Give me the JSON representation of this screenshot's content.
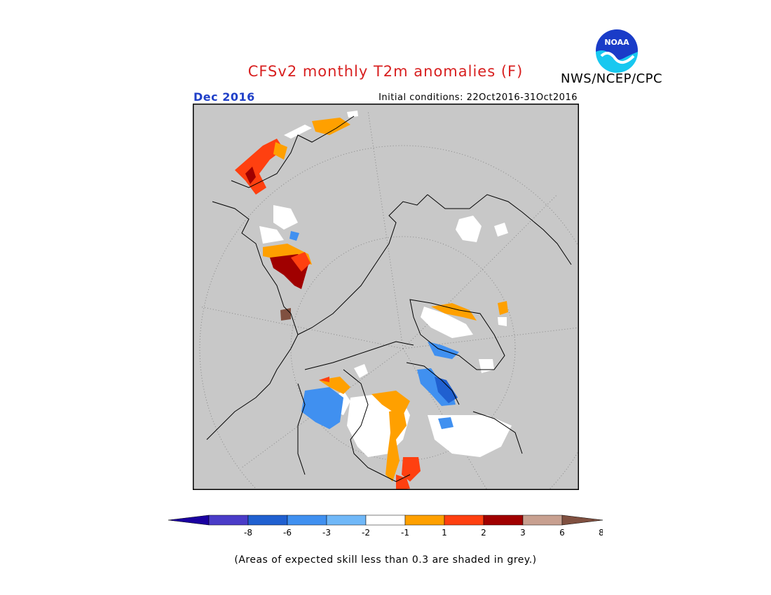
{
  "header": {
    "title": "CFSv2 monthly T2m anomalies (F)",
    "agency": "NWS/NCEP/CPC",
    "logo_text": "NOAA",
    "target_month": "Dec 2016",
    "initial_conditions": "Initial conditions: 22Oct2016-31Oct2016"
  },
  "colorbar": {
    "tick_labels": [
      "-8",
      "-6",
      "-3",
      "-2",
      "-1",
      "1",
      "2",
      "3",
      "6",
      "8"
    ],
    "colors": [
      "#1a00a0",
      "#4a3cc8",
      "#2060d0",
      "#4090f0",
      "#70b8f8",
      "#ffffff",
      "#ffa000",
      "#ff4010",
      "#a00000",
      "#c8a090",
      "#805040"
    ]
  },
  "footnote": "(Areas of expected skill less than 0.3 are shaded in grey.)",
  "map_colors": {
    "skill_grey": "#c8c8c8",
    "coast": "#000000",
    "grid": "#888888"
  }
}
